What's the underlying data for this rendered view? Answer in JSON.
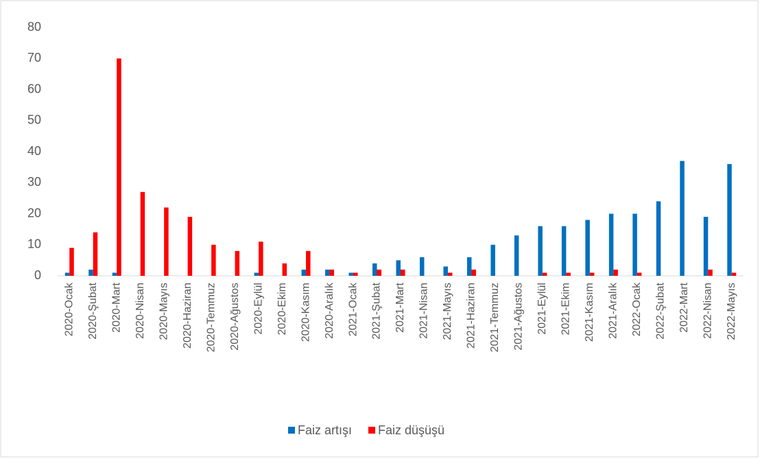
{
  "chart_data": {
    "type": "bar",
    "categories": [
      "2020-Ocak",
      "2020-Şubat",
      "2020-Mart",
      "2020-Nisan",
      "2020-Mayıs",
      "2020-Haziran",
      "2020-Temmuz",
      "2020-Ağustos",
      "2020-Eylül",
      "2020-Ekim",
      "2020-Kasım",
      "2020-Aralık",
      "2021-Ocak",
      "2021-Şubat",
      "2021-Mart",
      "2021-Nisan",
      "2021-Mayıs",
      "2021-Haziran",
      "2021-Temmuz",
      "2021-Ağustos",
      "2021-Eylül",
      "2021-Ekim",
      "2021-Kasım",
      "2021-Aralık",
      "2022-Ocak",
      "2022-Şubat",
      "2022-Mart",
      "2022-Nisan",
      "2022-Mayıs"
    ],
    "series": [
      {
        "name": "Faiz artışı",
        "color": "#0070c0",
        "values": [
          1,
          2,
          1,
          0,
          0,
          0,
          0,
          0,
          1,
          0,
          2,
          2,
          1,
          4,
          5,
          6,
          3,
          6,
          10,
          13,
          16,
          16,
          18,
          20,
          20,
          24,
          37,
          19,
          36
        ]
      },
      {
        "name": "Faiz düşüşü",
        "color": "#ff0000",
        "values": [
          9,
          14,
          70,
          27,
          22,
          19,
          10,
          8,
          11,
          4,
          8,
          2,
          1,
          2,
          2,
          0,
          1,
          2,
          0,
          0,
          1,
          1,
          1,
          2,
          1,
          0,
          0,
          2,
          1
        ]
      }
    ],
    "ylim": [
      0,
      80
    ],
    "yticks": [
      0,
      10,
      20,
      30,
      40,
      50,
      60,
      70,
      80
    ],
    "grid": false,
    "legend": "bottom"
  }
}
